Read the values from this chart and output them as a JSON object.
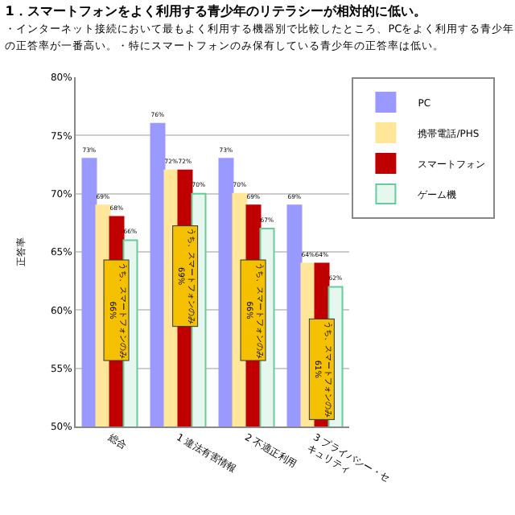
{
  "chart_data": {
    "type": "bar",
    "title": "1．スマートフォンをよく利用する青少年のリテラシーが相対的に低い。",
    "subtitle": "・インターネット接続において最もよく利用する機器別で比較したところ、PCをよく利用する青少年の正答率が一番高い。・特にスマートフォンのみ保有している青少年の正答率は低い。",
    "ylabel": "正答率",
    "categories": [
      "総合",
      "1 違法有害情報",
      "2 不適正利用",
      "3 プライバシー・セキュリティ"
    ],
    "series": [
      {
        "name": "PC",
        "color": "#9999ff",
        "values": [
          73,
          76,
          73,
          69
        ],
        "value_labels": [
          "73%",
          "76%",
          "73%",
          "69%"
        ]
      },
      {
        "name": "携帯電話/PHS",
        "color": "#ffe699",
        "values": [
          69,
          72,
          70,
          64
        ],
        "value_labels": [
          "69%",
          "72%",
          "70%",
          "64%"
        ]
      },
      {
        "name": "スマートフォン",
        "color": "#c00000",
        "values": [
          68,
          72,
          69,
          64
        ],
        "value_labels": [
          "68%",
          "72%",
          "69%",
          "64%"
        ]
      },
      {
        "name": "ゲーム機",
        "color": "#e6f7ef",
        "values": [
          66,
          70,
          67,
          62
        ],
        "value_labels": [
          "66%",
          "70%",
          "67%",
          "62%"
        ]
      }
    ],
    "annotations": [
      {
        "text": "うち、スマートフォンのみ 66%",
        "x": "総合",
        "y": 66
      },
      {
        "text": "うち、スマートフォンのみ 69%",
        "x": "1 違法有害情報",
        "y": 69
      },
      {
        "text": "うち、スマートフォンのみ 66%",
        "x": "2 不適正利用",
        "y": 66
      },
      {
        "text": "うち、スマートフォンのみ 61%",
        "x": "3 プライバシー・セキュリティ",
        "y": 61
      }
    ],
    "ylim": [
      50,
      80
    ],
    "yticks": [
      {
        "value": 50,
        "label": "50%"
      },
      {
        "value": 55,
        "label": "55%"
      },
      {
        "value": 60,
        "label": "60%"
      },
      {
        "value": 65,
        "label": "65%"
      },
      {
        "value": 70,
        "label": "70%"
      },
      {
        "value": 75,
        "label": "75%"
      },
      {
        "value": 80,
        "label": "80%"
      }
    ],
    "grid": "y",
    "legend": "top right"
  }
}
